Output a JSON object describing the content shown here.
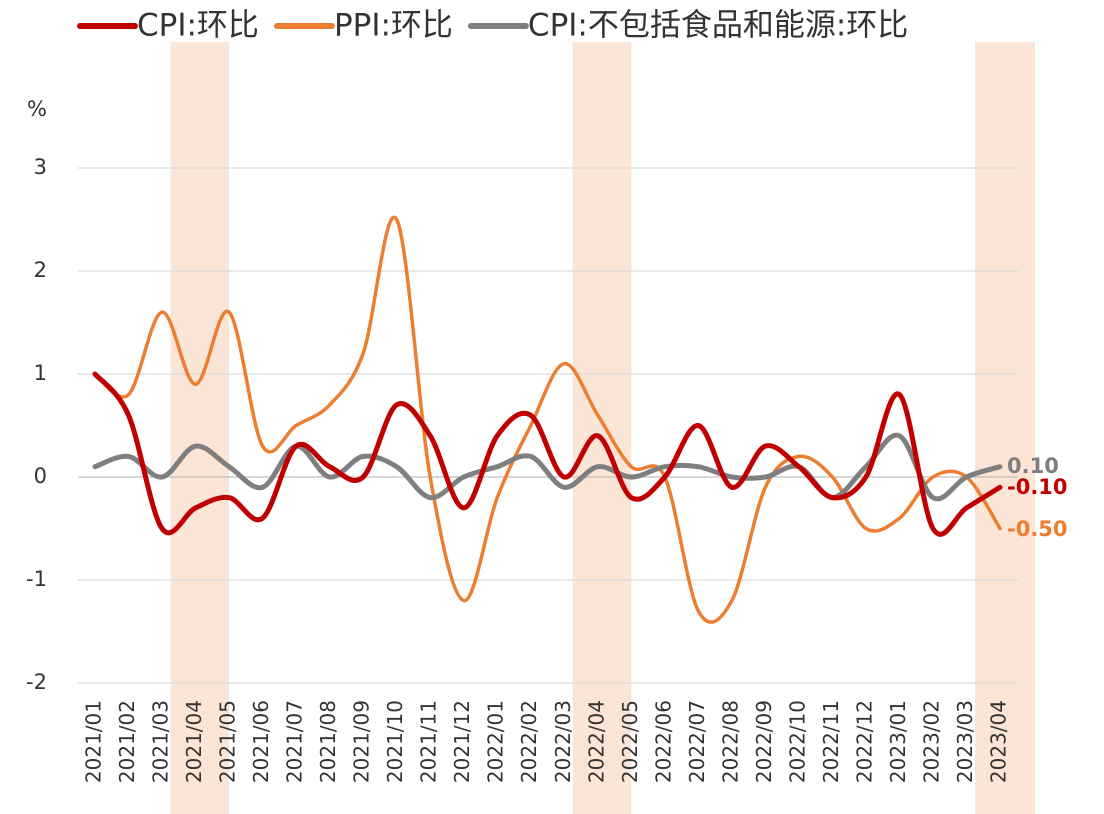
{
  "chart_data": {
    "type": "line",
    "y_axis_label": "%",
    "categories": [
      "2021/01",
      "2021/02",
      "2021/03",
      "2021/04",
      "2021/05",
      "2021/06",
      "2021/07",
      "2021/08",
      "2021/09",
      "2021/10",
      "2021/11",
      "2021/12",
      "2022/01",
      "2022/02",
      "2022/03",
      "2022/04",
      "2022/05",
      "2022/06",
      "2022/07",
      "2022/08",
      "2022/09",
      "2022/10",
      "2022/11",
      "2022/12",
      "2023/01",
      "2023/02",
      "2023/03",
      "2023/04"
    ],
    "series": [
      {
        "name": "CPI:环比",
        "color": "#c00000",
        "last_label": "-0.10",
        "values": [
          1.0,
          0.6,
          -0.5,
          -0.3,
          -0.2,
          -0.4,
          0.3,
          0.1,
          0.0,
          0.7,
          0.4,
          -0.3,
          0.4,
          0.6,
          0.0,
          0.4,
          -0.2,
          0.0,
          0.5,
          -0.1,
          0.3,
          0.1,
          -0.2,
          0.0,
          0.8,
          -0.5,
          -0.3,
          -0.1
        ]
      },
      {
        "name": "PPI:环比",
        "color": "#ed7d31",
        "last_label": "-0.50",
        "values": [
          1.0,
          0.8,
          1.6,
          0.9,
          1.6,
          0.3,
          0.5,
          0.7,
          1.2,
          2.5,
          0.0,
          -1.2,
          -0.2,
          0.5,
          1.1,
          0.6,
          0.1,
          0.0,
          -1.3,
          -1.2,
          -0.1,
          0.2,
          0.0,
          -0.5,
          -0.4,
          0.0,
          0.0,
          -0.5
        ]
      },
      {
        "name": "CPI:不包括食品和能源:环比",
        "color": "#7f7f7f",
        "last_label": "0.10",
        "values": [
          0.1,
          0.2,
          0.0,
          0.3,
          0.1,
          -0.1,
          0.3,
          0.0,
          0.2,
          0.1,
          -0.2,
          0.0,
          0.1,
          0.2,
          -0.1,
          0.1,
          0.0,
          0.1,
          0.1,
          0.0,
          0.0,
          0.1,
          -0.2,
          0.1,
          0.4,
          -0.2,
          0.0,
          0.1
        ]
      }
    ],
    "highlight_ranges": [
      [
        "2021/04",
        "2021/05"
      ],
      [
        "2022/04",
        "2022/05"
      ],
      [
        "2023/04",
        "2023/04"
      ]
    ],
    "highlight_color": "#fbe5d6",
    "ylim": [
      -2,
      3
    ],
    "yticks": [
      -2,
      -1,
      0,
      1,
      2,
      3
    ],
    "grid": true,
    "legend": "top"
  }
}
